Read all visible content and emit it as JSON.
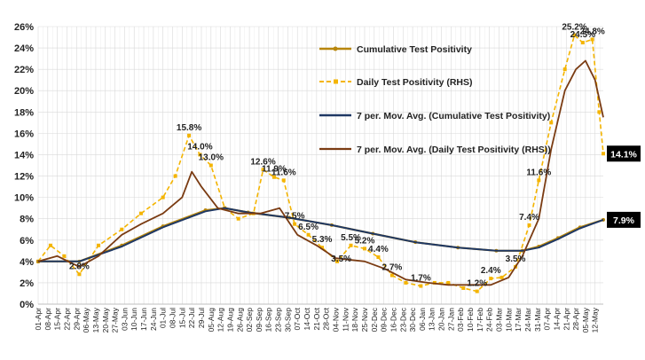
{
  "colors": {
    "cumulative": "#b8860b",
    "daily": "#f4b400",
    "ma_cumulative": "#1f3864",
    "ma_daily": "#7a3b12",
    "grid": "#d9d9d9",
    "end_label_bg": "#000000"
  },
  "chart_data": {
    "type": "line",
    "ylim": [
      0,
      26
    ],
    "y_ticks": [
      "0%",
      "2%",
      "4%",
      "6%",
      "8%",
      "10%",
      "12%",
      "14%",
      "16%",
      "18%",
      "20%",
      "22%",
      "24%",
      "26%"
    ],
    "x_start": "2020-04-01",
    "x_end": "2021-05-18",
    "x_ticks": [
      "01-Apr",
      "08-Apr",
      "15-Apr",
      "22-Apr",
      "29-Apr",
      "06-May",
      "13-May",
      "20-May",
      "27-May",
      "03-Jun",
      "10-Jun",
      "17-Jun",
      "24-Jun",
      "01-Jul",
      "08-Jul",
      "15-Jul",
      "22-Jul",
      "29-Jul",
      "05-Aug",
      "12-Aug",
      "19-Aug",
      "26-Aug",
      "02-Sep",
      "09-Sep",
      "16-Sep",
      "23-Sep",
      "30-Sep",
      "07-Oct",
      "14-Oct",
      "21-Oct",
      "28-Oct",
      "04-Nov",
      "11-Nov",
      "18-Nov",
      "25-Nov",
      "02-Dec",
      "09-Dec",
      "16-Dec",
      "23-Dec",
      "30-Dec",
      "06-Jan",
      "13-Jan",
      "20-Jan",
      "27-Jan",
      "03-Feb",
      "10-Feb",
      "17-Feb",
      "24-Feb",
      "03-Mar",
      "10-Mar",
      "17-Mar",
      "24-Mar",
      "31-Mar",
      "07-Apr",
      "14-Apr",
      "21-Apr",
      "28-Apr",
      "05-May",
      "12-May"
    ],
    "series": [
      {
        "name": "Cumulative Test Positivity",
        "x": [
          "2020-04-01",
          "2020-05-01",
          "2020-06-01",
          "2020-07-01",
          "2020-08-01",
          "2020-08-15",
          "2020-09-01",
          "2020-10-01",
          "2020-11-01",
          "2020-12-01",
          "2021-01-01",
          "2021-02-01",
          "2021-03-01",
          "2021-03-20",
          "2021-04-01",
          "2021-04-15",
          "2021-05-01",
          "2021-05-18"
        ],
        "y": [
          4.0,
          4.0,
          5.5,
          7.3,
          8.8,
          9.0,
          8.6,
          8.1,
          7.4,
          6.6,
          5.8,
          5.3,
          5.0,
          5.0,
          5.4,
          6.2,
          7.2,
          7.9
        ]
      },
      {
        "name": "Daily Test Positivity (RHS)",
        "x": [
          "2020-04-01",
          "2020-04-10",
          "2020-04-20",
          "2020-05-01",
          "2020-05-15",
          "2020-06-01",
          "2020-06-15",
          "2020-07-01",
          "2020-07-10",
          "2020-07-20",
          "2020-07-28",
          "2020-08-05",
          "2020-08-15",
          "2020-08-25",
          "2020-09-05",
          "2020-09-12",
          "2020-09-20",
          "2020-09-27",
          "2020-10-05",
          "2020-10-15",
          "2020-10-25",
          "2020-11-05",
          "2020-11-15",
          "2020-11-25",
          "2020-12-05",
          "2020-12-15",
          "2020-12-25",
          "2021-01-05",
          "2021-01-15",
          "2021-01-25",
          "2021-02-05",
          "2021-02-15",
          "2021-02-25",
          "2021-03-05",
          "2021-03-15",
          "2021-03-25",
          "2021-04-01",
          "2021-04-10",
          "2021-04-20",
          "2021-04-27",
          "2021-05-03",
          "2021-05-10",
          "2021-05-15",
          "2021-05-18"
        ],
        "y": [
          4.0,
          5.5,
          4.5,
          2.8,
          5.5,
          7.0,
          8.5,
          10.0,
          12.0,
          15.8,
          14.0,
          13.0,
          9.0,
          8.0,
          8.5,
          12.6,
          11.9,
          11.6,
          7.5,
          6.5,
          5.3,
          4.0,
          5.5,
          5.2,
          4.4,
          2.7,
          2.0,
          1.7,
          2.0,
          2.0,
          1.5,
          1.2,
          2.4,
          2.5,
          3.5,
          7.4,
          11.6,
          17.0,
          22.0,
          25.2,
          24.5,
          24.8,
          18.0,
          14.1
        ]
      },
      {
        "name": "7 per. Mov. Avg. (Cumulative Test Positivity)",
        "x": [
          "2020-04-01",
          "2020-05-01",
          "2020-06-01",
          "2020-07-01",
          "2020-08-01",
          "2020-08-15",
          "2020-09-01",
          "2020-10-01",
          "2020-11-01",
          "2020-12-01",
          "2021-01-01",
          "2021-02-01",
          "2021-03-01",
          "2021-03-20",
          "2021-04-01",
          "2021-04-15",
          "2021-05-01",
          "2021-05-18"
        ],
        "y": [
          4.0,
          4.0,
          5.4,
          7.2,
          8.7,
          9.0,
          8.6,
          8.1,
          7.4,
          6.6,
          5.8,
          5.3,
          5.0,
          5.0,
          5.3,
          6.1,
          7.1,
          7.9
        ]
      },
      {
        "name": "7 per. Mov. Avg. (Daily Test Positivity (RHS))",
        "x": [
          "2020-04-01",
          "2020-04-15",
          "2020-05-01",
          "2020-05-15",
          "2020-06-01",
          "2020-06-15",
          "2020-07-01",
          "2020-07-15",
          "2020-07-22",
          "2020-07-29",
          "2020-08-10",
          "2020-08-25",
          "2020-09-10",
          "2020-09-24",
          "2020-10-07",
          "2020-10-21",
          "2020-11-04",
          "2020-11-25",
          "2020-12-10",
          "2020-12-25",
          "2021-01-10",
          "2021-01-25",
          "2021-02-10",
          "2021-02-25",
          "2021-03-10",
          "2021-03-20",
          "2021-04-01",
          "2021-04-10",
          "2021-04-20",
          "2021-04-28",
          "2021-05-05",
          "2021-05-12",
          "2021-05-18"
        ],
        "y": [
          4.0,
          4.5,
          3.5,
          4.5,
          6.5,
          7.5,
          8.5,
          10.0,
          12.4,
          11.0,
          9.0,
          8.5,
          8.5,
          9.0,
          6.5,
          5.5,
          4.3,
          4.0,
          3.3,
          2.3,
          2.0,
          1.8,
          1.8,
          1.8,
          2.5,
          4.5,
          8.0,
          14.5,
          20.0,
          22.0,
          22.8,
          21.0,
          17.5
        ]
      }
    ],
    "annotations": [
      {
        "text": "2.8%",
        "x": "2020-05-01",
        "y": 2.8
      },
      {
        "text": "15.8%",
        "x": "2020-07-20",
        "y": 15.8
      },
      {
        "text": "14.0%",
        "x": "2020-07-28",
        "y": 14.0
      },
      {
        "text": "13.0%",
        "x": "2020-08-05",
        "y": 13.0
      },
      {
        "text": "12.6%",
        "x": "2020-09-12",
        "y": 12.6
      },
      {
        "text": "11.9%",
        "x": "2020-09-20",
        "y": 11.9
      },
      {
        "text": "11.6%",
        "x": "2020-09-27",
        "y": 11.6
      },
      {
        "text": "7.5%",
        "x": "2020-10-05",
        "y": 7.5
      },
      {
        "text": "6.5%",
        "x": "2020-10-15",
        "y": 6.5
      },
      {
        "text": "5.3%",
        "x": "2020-10-25",
        "y": 5.3
      },
      {
        "text": "5.5%",
        "x": "2020-11-15",
        "y": 5.5
      },
      {
        "text": "5.2%",
        "x": "2020-11-25",
        "y": 5.2
      },
      {
        "text": "3.5%",
        "x": "2020-11-08",
        "y": 3.5
      },
      {
        "text": "4.4%",
        "x": "2020-12-05",
        "y": 4.4
      },
      {
        "text": "2.7%",
        "x": "2020-12-15",
        "y": 2.7
      },
      {
        "text": "1.7%",
        "x": "2021-01-05",
        "y": 1.7
      },
      {
        "text": "1.2%",
        "x": "2021-02-15",
        "y": 1.2
      },
      {
        "text": "2.4%",
        "x": "2021-02-25",
        "y": 2.4
      },
      {
        "text": "3.5%",
        "x": "2021-03-15",
        "y": 3.5
      },
      {
        "text": "7.4%",
        "x": "2021-03-25",
        "y": 7.4
      },
      {
        "text": "11.6%",
        "x": "2021-04-01",
        "y": 11.6
      },
      {
        "text": "25.2%",
        "x": "2021-04-27",
        "y": 25.2
      },
      {
        "text": "24.5%",
        "x": "2021-05-03",
        "y": 24.5
      },
      {
        "text": "24.8%",
        "x": "2021-05-10",
        "y": 24.8
      }
    ],
    "end_labels": [
      {
        "text": "14.1%",
        "y": 14.1
      },
      {
        "text": "7.9%",
        "y": 7.9
      }
    ],
    "legend_position": "top-right",
    "grid": true
  }
}
